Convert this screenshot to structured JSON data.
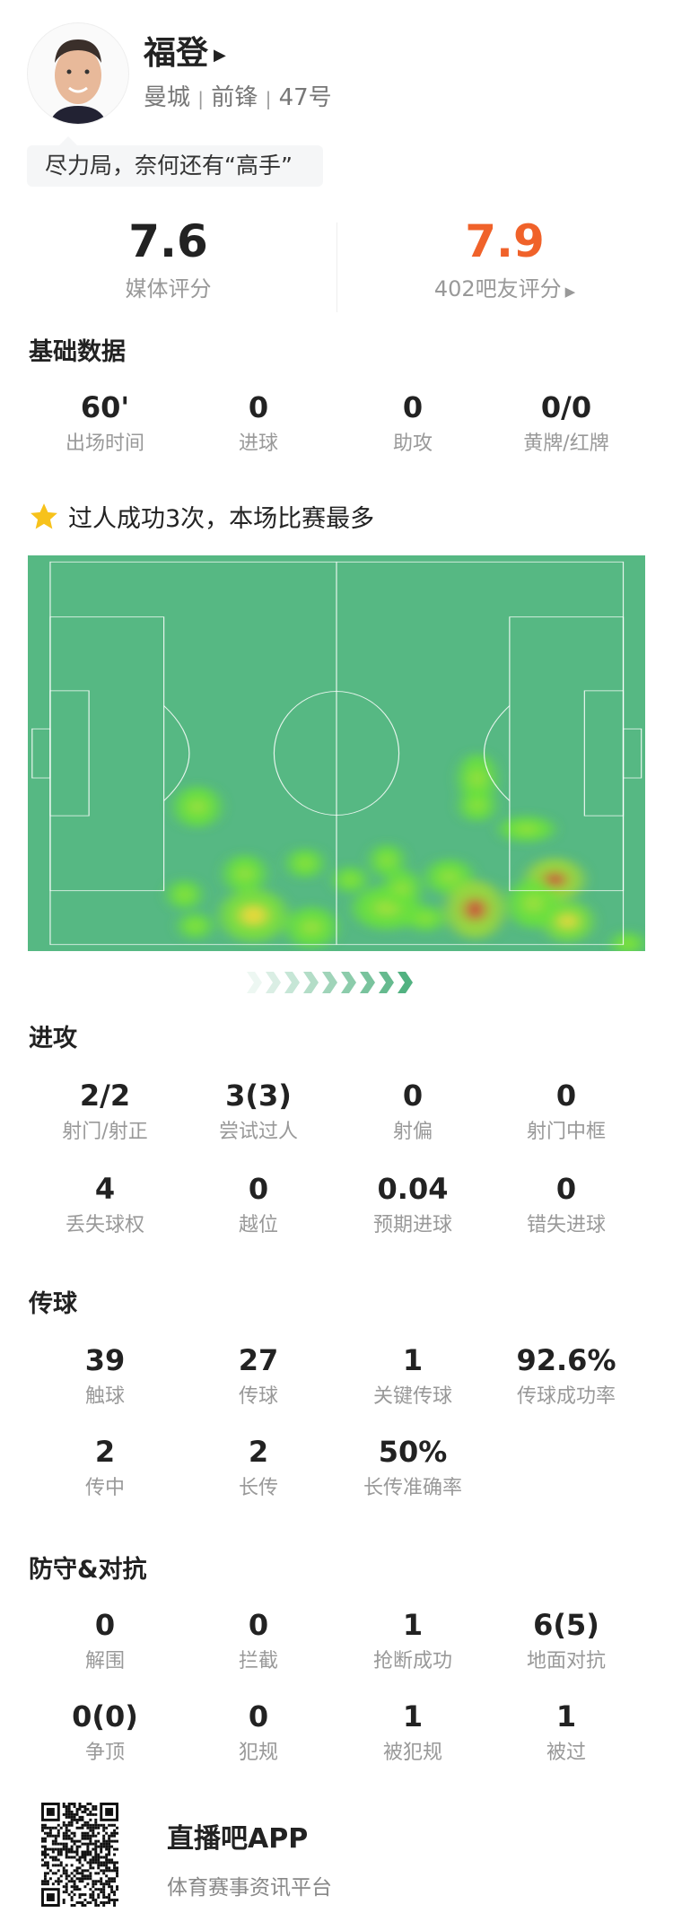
{
  "player": {
    "name": "福登",
    "team": "曼城",
    "position": "前锋",
    "number": "47号",
    "separator": "|",
    "comment": "尽力局，奈何还有“高手”"
  },
  "ratings": {
    "media_value": "7.6",
    "media_label": "媒体评分",
    "fan_value": "7.9",
    "fan_label": "402吧友评分",
    "fan_color": "#f0622a"
  },
  "basic": {
    "title": "基础数据",
    "items": [
      {
        "value": "60'",
        "label": "出场时间"
      },
      {
        "value": "0",
        "label": "进球"
      },
      {
        "value": "0",
        "label": "助攻"
      },
      {
        "value": "0/0",
        "label": "黄牌/红牌"
      }
    ]
  },
  "highlight": {
    "icon": "star-icon",
    "text": "过人成功3次，本场比赛最多",
    "star_color": "#f7c21b"
  },
  "heatmap": {
    "pitch_color": "#56b883",
    "attack_direction": "right"
  },
  "attack": {
    "title": "进攻",
    "items": [
      {
        "value": "2/2",
        "label": "射门/射正"
      },
      {
        "value": "3(3)",
        "label": "尝试过人"
      },
      {
        "value": "0",
        "label": "射偏"
      },
      {
        "value": "0",
        "label": "射门中框"
      },
      {
        "value": "4",
        "label": "丢失球权"
      },
      {
        "value": "0",
        "label": "越位"
      },
      {
        "value": "0.04",
        "label": "预期进球"
      },
      {
        "value": "0",
        "label": "错失进球"
      }
    ]
  },
  "passing": {
    "title": "传球",
    "items": [
      {
        "value": "39",
        "label": "触球"
      },
      {
        "value": "27",
        "label": "传球"
      },
      {
        "value": "1",
        "label": "关键传球"
      },
      {
        "value": "92.6%",
        "label": "传球成功率"
      },
      {
        "value": "2",
        "label": "传中"
      },
      {
        "value": "2",
        "label": "长传"
      },
      {
        "value": "50%",
        "label": "长传准确率"
      }
    ]
  },
  "defense": {
    "title": "防守&对抗",
    "items": [
      {
        "value": "0",
        "label": "解围"
      },
      {
        "value": "0",
        "label": "拦截"
      },
      {
        "value": "1",
        "label": "抢断成功"
      },
      {
        "value": "6(5)",
        "label": "地面对抗"
      },
      {
        "value": "0(0)",
        "label": "争顶"
      },
      {
        "value": "0",
        "label": "犯规"
      },
      {
        "value": "1",
        "label": "被犯规"
      },
      {
        "value": "1",
        "label": "被过"
      }
    ]
  },
  "footer": {
    "app_name": "直播吧APP",
    "slogan": "体育赛事资讯平台",
    "qr_icon": "qr-code-icon"
  }
}
